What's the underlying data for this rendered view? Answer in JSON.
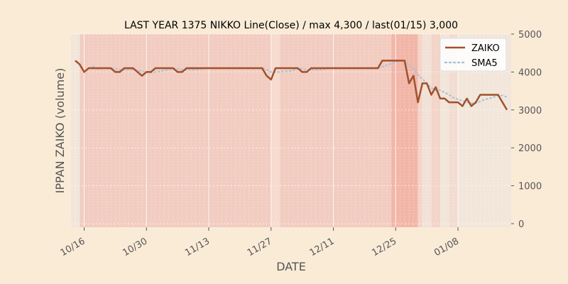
{
  "chart_data": {
    "type": "line",
    "title": "LAST YEAR 1375 NIKKO Line(Close) / max 4,300 / last(01/15) 3,000",
    "xlabel": "DATE",
    "ylabel": "IPPAN ZAIKO (volume)",
    "ylim": [
      0,
      5000
    ],
    "yticks": [
      "0",
      "1000",
      "2000",
      "3000",
      "4000",
      "5000"
    ],
    "y_axis_side": "right",
    "xticks": [
      "10/16",
      "10/30",
      "11/13",
      "11/27",
      "12/11",
      "12/25",
      "01/08"
    ],
    "grid": true,
    "legend_position": "top-right",
    "colors": {
      "zaiko": "#a0522d",
      "sma5": "#a9c4d8",
      "background": "#faebd7"
    },
    "series": [
      {
        "name": "ZAIKO",
        "style": "solid",
        "values": [
          4300,
          4200,
          4000,
          4100,
          4100,
          4100,
          4100,
          4100,
          4100,
          4000,
          4000,
          4100,
          4100,
          4100,
          4000,
          3900,
          4000,
          4000,
          4100,
          4100,
          4100,
          4100,
          4100,
          4000,
          4000,
          4100,
          4100,
          4100,
          4100,
          4100,
          4100,
          4100,
          4100,
          4100,
          4100,
          4100,
          4100,
          4100,
          4100,
          4100,
          4100,
          4100,
          4100,
          3900,
          3800,
          4100,
          4100,
          4100,
          4100,
          4100,
          4100,
          4000,
          4000,
          4100,
          4100,
          4100,
          4100,
          4100,
          4100,
          4100,
          4100,
          4100,
          4100,
          4100,
          4100,
          4100,
          4100,
          4100,
          4100,
          4300,
          4300,
          4300,
          4300,
          4300,
          4300,
          3700,
          3900,
          3200,
          3700,
          3700,
          3400,
          3600,
          3300,
          3300,
          3200,
          3200,
          3200,
          3100,
          3300,
          3100,
          3200,
          3400,
          3400,
          3400,
          3400,
          3400,
          3200,
          3000
        ]
      },
      {
        "name": "SMA5",
        "style": "dotted",
        "values": [
          null,
          null,
          null,
          null,
          4140,
          4080,
          4100,
          4100,
          4100,
          4080,
          4060,
          4060,
          4060,
          4060,
          4040,
          4020,
          4000,
          3980,
          4000,
          4020,
          4040,
          4060,
          4100,
          4080,
          4060,
          4060,
          4060,
          4060,
          4080,
          4100,
          4100,
          4100,
          4100,
          4100,
          4100,
          4100,
          4100,
          4100,
          4100,
          4100,
          4100,
          4100,
          4100,
          4060,
          4000,
          4000,
          4000,
          4020,
          4020,
          4040,
          4100,
          4080,
          4060,
          4060,
          4060,
          4060,
          4080,
          4100,
          4100,
          4100,
          4100,
          4100,
          4100,
          4100,
          4100,
          4100,
          4100,
          4100,
          4100,
          4140,
          4180,
          4220,
          4260,
          4300,
          4300,
          4180,
          4100,
          3920,
          3820,
          3700,
          3580,
          3520,
          3520,
          3460,
          3400,
          3320,
          3280,
          3240,
          3200,
          3180,
          3180,
          3220,
          3280,
          3300,
          3340,
          3380,
          3380,
          3340
        ]
      }
    ]
  }
}
